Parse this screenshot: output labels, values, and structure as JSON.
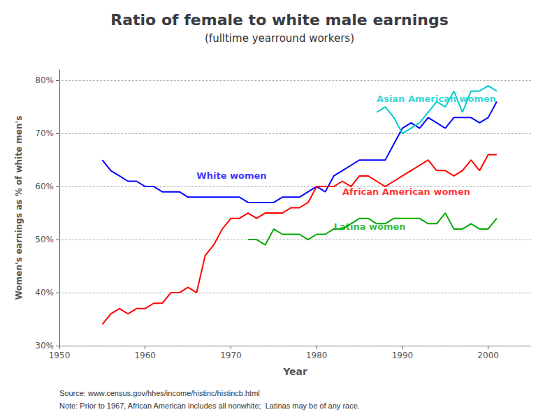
{
  "chart_data": {
    "type": "line",
    "title": "Ratio of female to white male earnings",
    "subtitle": "(fulltime yearround workers)",
    "xlabel": "Year",
    "ylabel": "Women's earnings as % of white men's",
    "source": "Source: www.census.gov/hhes/income/histinc/histincb.html",
    "note": "Note: Prior to 1967, African American includes all nonwhite;  Latinas may be of any race.",
    "xlim": [
      1950,
      2005
    ],
    "xticks": [
      1950,
      1960,
      1970,
      1980,
      1990,
      2000
    ],
    "ylim": [
      30,
      82
    ],
    "yticks": [
      {
        "value": 30,
        "label": "30%"
      },
      {
        "value": 40,
        "label": "40%"
      },
      {
        "value": 50,
        "label": "50%"
      },
      {
        "value": 60,
        "label": "60%"
      },
      {
        "value": 70,
        "label": "70%"
      },
      {
        "value": 80,
        "label": "80%"
      }
    ],
    "grid": true,
    "series": [
      {
        "color": "#0000FF",
        "x": [
          1955,
          1956,
          1957,
          1958,
          1959,
          1960,
          1961,
          1962,
          1963,
          1964,
          1965,
          1966,
          1967,
          1968,
          1969,
          1970,
          1971,
          1972,
          1973,
          1974,
          1975,
          1976,
          1977,
          1978,
          1979,
          1980,
          1981,
          1982,
          1983,
          1984,
          1985,
          1986,
          1987,
          1988,
          1989,
          1990,
          1991,
          1992,
          1993,
          1994,
          1995,
          1996,
          1997,
          1998,
          1999,
          2000,
          2001
        ],
        "values": [
          65,
          63,
          62,
          61,
          61,
          60,
          60,
          59,
          59,
          59,
          58,
          58,
          58,
          58,
          58,
          58,
          58,
          57,
          57,
          57,
          57,
          58,
          58,
          58,
          59,
          60,
          59,
          62,
          63,
          64,
          65,
          65,
          65,
          65,
          68,
          71,
          72,
          71,
          73,
          72,
          71,
          73,
          73,
          73,
          72,
          73,
          76
        ]
      },
      {
        "color": "#FF0000",
        "x": [
          1955,
          1956,
          1957,
          1958,
          1959,
          1960,
          1961,
          1962,
          1963,
          1964,
          1965,
          1966,
          1967,
          1968,
          1969,
          1970,
          1971,
          1972,
          1973,
          1974,
          1975,
          1976,
          1977,
          1978,
          1979,
          1980,
          1981,
          1982,
          1983,
          1984,
          1985,
          1986,
          1987,
          1988,
          1989,
          1990,
          1991,
          1992,
          1993,
          1994,
          1995,
          1996,
          1997,
          1998,
          1999,
          2000,
          2001
        ],
        "values": [
          34,
          36,
          37,
          36,
          37,
          37,
          38,
          38,
          40,
          40,
          41,
          40,
          47,
          49,
          52,
          54,
          54,
          55,
          54,
          55,
          55,
          55,
          56,
          56,
          57,
          60,
          60,
          60,
          61,
          60,
          62,
          62,
          61,
          60,
          61,
          62,
          63,
          64,
          65,
          63,
          63,
          62,
          63,
          65,
          63,
          66,
          66
        ]
      },
      {
        "color": "#00AA00",
        "x": [
          1972,
          1973,
          1974,
          1975,
          1976,
          1977,
          1978,
          1979,
          1980,
          1981,
          1982,
          1983,
          1984,
          1985,
          1986,
          1987,
          1988,
          1989,
          1990,
          1991,
          1992,
          1993,
          1994,
          1995,
          1996,
          1997,
          1998,
          1999,
          2000,
          2001
        ],
        "values": [
          50,
          50,
          49,
          52,
          51,
          51,
          51,
          50,
          51,
          51,
          52,
          52,
          53,
          54,
          54,
          53,
          53,
          54,
          54,
          54,
          54,
          53,
          53,
          55,
          52,
          52,
          53,
          52,
          52,
          54
        ]
      },
      {
        "color": "#00CCCC",
        "x": [
          1987,
          1988,
          1989,
          1990,
          1991,
          1992,
          1993,
          1994,
          1995,
          1996,
          1997,
          1998,
          1999,
          2000,
          2001
        ],
        "values": [
          74,
          75,
          73,
          70,
          71,
          72,
          74,
          76,
          75,
          78,
          74,
          78,
          78,
          79,
          78
        ]
      }
    ],
    "annotations": [
      {
        "text": "White women",
        "x": 1966,
        "y": 62,
        "color": "#0000FF"
      },
      {
        "text": "African American women",
        "x": 1983,
        "y": 59,
        "color": "#FF0000"
      },
      {
        "text": "Latina women",
        "x": 1982,
        "y": 52.5,
        "color": "#00AA00"
      },
      {
        "text": "Asian American women",
        "x": 1987,
        "y": 76.5,
        "color": "#00CCCC"
      }
    ]
  }
}
